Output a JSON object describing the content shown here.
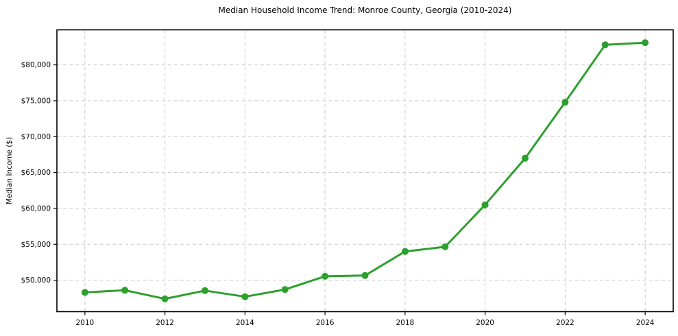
{
  "chart_data": {
    "type": "line",
    "title": "Median Household Income Trend: Monroe County, Georgia (2010-2024)",
    "xlabel": "",
    "ylabel": "Median Income ($)",
    "x": [
      2010,
      2011,
      2012,
      2013,
      2014,
      2015,
      2016,
      2017,
      2018,
      2019,
      2020,
      2021,
      2022,
      2023,
      2024
    ],
    "values": [
      48300,
      48600,
      47400,
      48550,
      47700,
      48700,
      50550,
      50650,
      54000,
      54650,
      60500,
      67000,
      74800,
      82800,
      83100
    ],
    "series_name": "Median household income",
    "xlim": [
      2009.3,
      2024.7
    ],
    "ylim": [
      45615,
      84885
    ],
    "x_ticks": [
      2010,
      2012,
      2014,
      2016,
      2018,
      2020,
      2022,
      2024
    ],
    "y_ticks": [
      50000,
      55000,
      60000,
      65000,
      70000,
      75000,
      80000
    ],
    "y_tick_labels": [
      "$50,000",
      "$55,000",
      "$60,000",
      "$65,000",
      "$70,000",
      "$75,000",
      "$80,000"
    ],
    "grid": "both-dashed",
    "legend": "none",
    "marker": "circle",
    "line_color": "#2ca02c",
    "marker_color": "#2ca02c",
    "grid_color": "#c9c9c9",
    "axis_color": "#000000",
    "background_color": "#ffffff"
  }
}
